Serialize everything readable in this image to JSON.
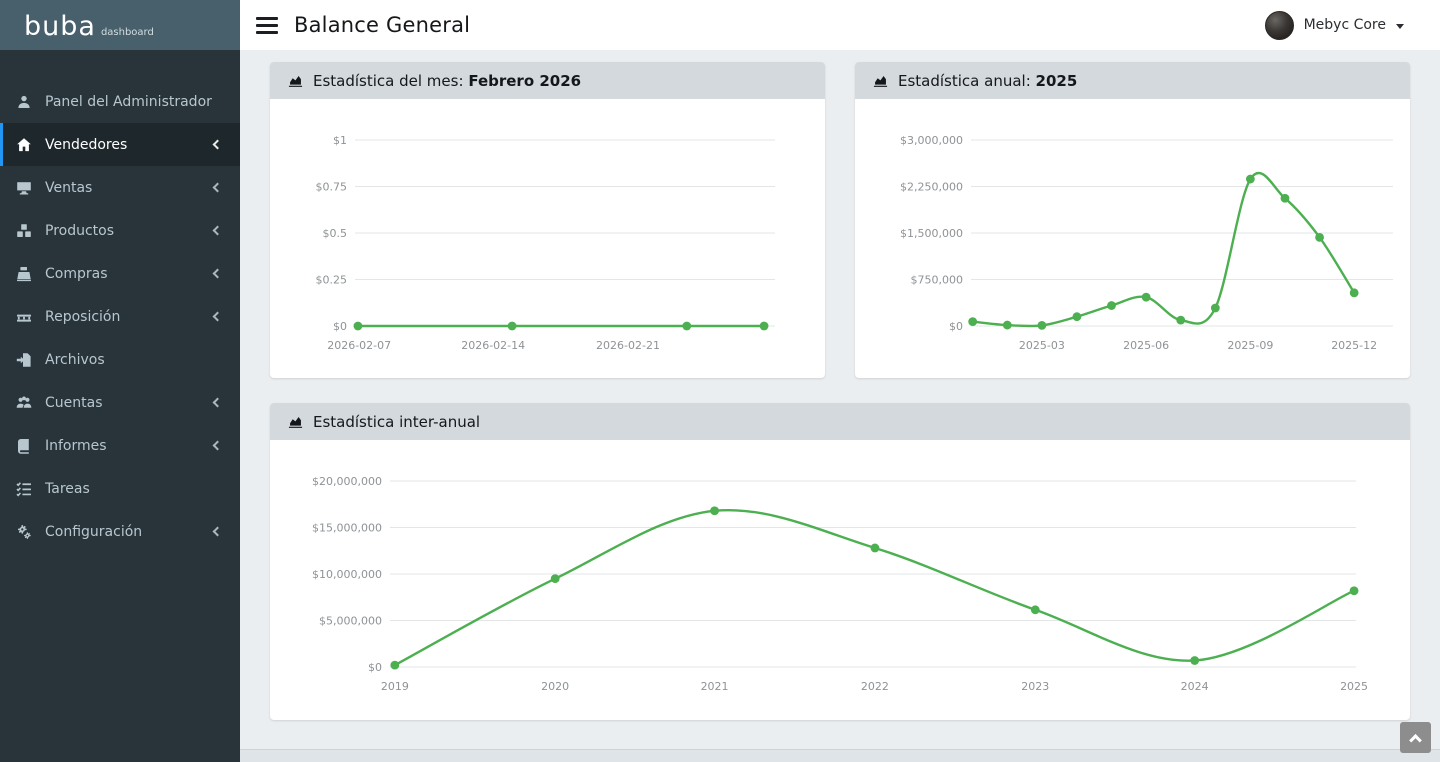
{
  "brand": {
    "name": "buba",
    "suffix": "dashboard"
  },
  "topbar": {
    "title": "Balance General",
    "user_name": "Mebyc Core"
  },
  "sidebar": {
    "items": [
      {
        "label": "Panel del Administrador",
        "icon": "user-icon",
        "has_children": false,
        "active": false
      },
      {
        "label": "Vendedores",
        "icon": "home-icon",
        "has_children": true,
        "active": true
      },
      {
        "label": "Ventas",
        "icon": "desktop-icon",
        "has_children": true,
        "active": false
      },
      {
        "label": "Productos",
        "icon": "cubes-icon",
        "has_children": true,
        "active": false
      },
      {
        "label": "Compras",
        "icon": "cash-register-icon",
        "has_children": true,
        "active": false
      },
      {
        "label": "Reposición",
        "icon": "pallet-icon",
        "has_children": true,
        "active": false
      },
      {
        "label": "Archivos",
        "icon": "file-export-icon",
        "has_children": false,
        "active": false
      },
      {
        "label": "Cuentas",
        "icon": "users-icon",
        "has_children": true,
        "active": false
      },
      {
        "label": "Informes",
        "icon": "book-icon",
        "has_children": true,
        "active": false
      },
      {
        "label": "Tareas",
        "icon": "tasks-icon",
        "has_children": false,
        "active": false
      },
      {
        "label": "Configuración",
        "icon": "gears-icon",
        "has_children": true,
        "active": false
      }
    ]
  },
  "cards": [
    {
      "title": "Estadística del mes:",
      "title_bold": "Febrero 2026"
    },
    {
      "title": "Estadística anual:",
      "title_bold": "2025"
    },
    {
      "title": "Estadística inter-anual",
      "title_bold": ""
    }
  ],
  "colors": {
    "accent_green": "#4caf50",
    "active_blue": "#2196f3",
    "sidebar_bg": "#28333a",
    "logo_bg": "#47606c",
    "header_bg": "#d4d9de",
    "grid_line": "#e3e5e7",
    "tick_text": "#8f9396"
  },
  "chart_data": [
    {
      "type": "line",
      "title": "Estadística del mes: Febrero 2026",
      "x": [
        "2026-02-07",
        "2026-02-15",
        "2026-02-24",
        "2026-02-28"
      ],
      "values": [
        0,
        0,
        0,
        0
      ],
      "point_fractions": [
        0.007,
        0.374,
        0.79,
        0.974
      ],
      "ylim": [
        0,
        1
      ],
      "y_ticks": [
        {
          "value": 1,
          "label": "$1"
        },
        {
          "value": 0.75,
          "label": "$0.75"
        },
        {
          "value": 0.5,
          "label": "$0.5"
        },
        {
          "value": 0.25,
          "label": "$0.25"
        },
        {
          "value": 0,
          "label": "$0"
        }
      ],
      "x_ticks": [
        {
          "label": "2026-02-07",
          "f": 0.01
        },
        {
          "label": "2026-02-14",
          "f": 0.329
        },
        {
          "label": "2026-02-21",
          "f": 0.65
        }
      ],
      "color": "#4caf50",
      "grid": true,
      "legend": false
    },
    {
      "type": "line",
      "title": "Estadística anual: 2025",
      "x": [
        "2025-01",
        "2025-02",
        "2025-03",
        "2025-04",
        "2025-05",
        "2025-06",
        "2025-07",
        "2025-08",
        "2025-09",
        "2025-10",
        "2025-11",
        "2025-12"
      ],
      "values": [
        70000,
        15000,
        10000,
        150000,
        330000,
        465000,
        95000,
        290000,
        2370000,
        2060000,
        1430000,
        535000
      ],
      "point_fractions": [
        0.004,
        0.086,
        0.168,
        0.251,
        0.333,
        0.415,
        0.497,
        0.579,
        0.662,
        0.744,
        0.826,
        0.908
      ],
      "ylim": [
        0,
        3000000
      ],
      "y_ticks": [
        {
          "value": 3000000,
          "label": "$3,000,000"
        },
        {
          "value": 2250000,
          "label": "$2,250,000"
        },
        {
          "value": 1500000,
          "label": "$1,500,000"
        },
        {
          "value": 750000,
          "label": "$750,000"
        },
        {
          "value": 0,
          "label": "$0"
        }
      ],
      "x_ticks": [
        {
          "label": "2025-03",
          "f": 0.168
        },
        {
          "label": "2025-06",
          "f": 0.415
        },
        {
          "label": "2025-09",
          "f": 0.662
        },
        {
          "label": "2025-12",
          "f": 0.908
        }
      ],
      "color": "#4caf50",
      "grid": true,
      "legend": false
    },
    {
      "type": "line",
      "title": "Estadística inter-anual",
      "x": [
        "2019",
        "2020",
        "2021",
        "2022",
        "2023",
        "2024",
        "2025"
      ],
      "values": [
        200000,
        9500000,
        16800000,
        12800000,
        6150000,
        700000,
        8200000
      ],
      "point_fractions": [
        0.005,
        0.171,
        0.336,
        0.502,
        0.668,
        0.833,
        0.998
      ],
      "ylim": [
        0,
        20000000
      ],
      "y_ticks": [
        {
          "value": 20000000,
          "label": "$20,000,000"
        },
        {
          "value": 15000000,
          "label": "$15,000,000"
        },
        {
          "value": 10000000,
          "label": "$10,000,000"
        },
        {
          "value": 5000000,
          "label": "$5,000,000"
        },
        {
          "value": 0,
          "label": "$0"
        }
      ],
      "x_ticks": [
        {
          "label": "2019",
          "f": 0.005
        },
        {
          "label": "2020",
          "f": 0.171
        },
        {
          "label": "2021",
          "f": 0.336
        },
        {
          "label": "2022",
          "f": 0.502
        },
        {
          "label": "2023",
          "f": 0.668
        },
        {
          "label": "2024",
          "f": 0.833
        },
        {
          "label": "2025",
          "f": 0.998
        }
      ],
      "color": "#4caf50",
      "grid": true,
      "legend": false
    }
  ]
}
